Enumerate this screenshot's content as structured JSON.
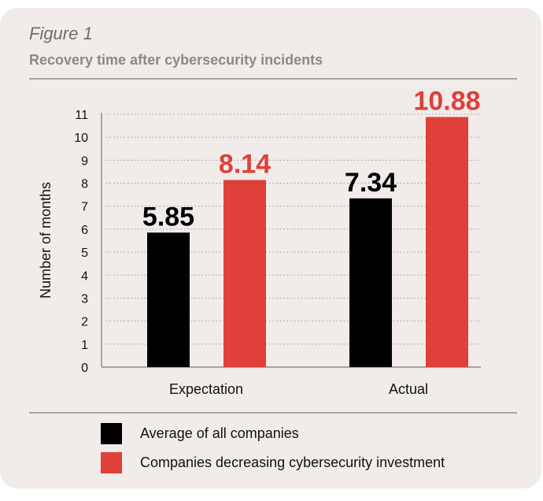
{
  "header": {
    "figure_label": "Figure 1",
    "subtitle": "Recovery time after cybersecurity incidents"
  },
  "colors": {
    "series_black": "#000000",
    "series_red": "#df403a",
    "axis": "#a8a4a2",
    "grid": "#9a9694"
  },
  "chart_data": {
    "type": "bar",
    "title": "Recovery time after cybersecurity incidents",
    "xlabel": "",
    "ylabel": "Number of months",
    "categories": [
      "Expectation",
      "Actual"
    ],
    "series": [
      {
        "name": "Average of all companies",
        "color": "#000000",
        "values": [
          5.85,
          7.34
        ],
        "labels": [
          "5.85",
          "7.34"
        ]
      },
      {
        "name": "Companies decreasing cybersecurity investment",
        "color": "#df403a",
        "values": [
          8.14,
          10.88
        ],
        "labels": [
          "8.14",
          "10.88"
        ]
      }
    ],
    "ylim": [
      0,
      11
    ],
    "yticks": [
      0,
      1,
      2,
      3,
      4,
      5,
      6,
      7,
      8,
      9,
      10,
      11
    ],
    "grid": true,
    "grid_style": "dotted",
    "legend_position": "bottom"
  },
  "legend": [
    {
      "label": "Average of all companies",
      "color": "#000000"
    },
    {
      "label": "Companies decreasing cybersecurity investment",
      "color": "#df403a"
    }
  ]
}
